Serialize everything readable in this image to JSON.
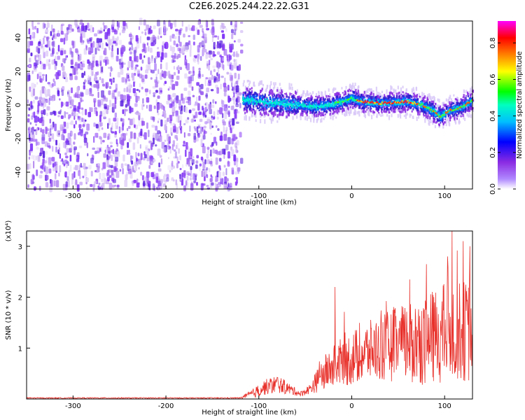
{
  "chart_data": [
    {
      "type": "heatmap",
      "title": "C2E6.2025.244.22.22.G31",
      "xlabel": "Height of straight line (km)",
      "ylabel": "Frequency (Hz)",
      "xlim": [
        -350,
        130
      ],
      "ylim": [
        -50,
        50
      ],
      "xticks": [
        -300,
        -200,
        -100,
        0,
        100
      ],
      "yticks": [
        -40,
        -20,
        0,
        20,
        40
      ],
      "noise_region_x": [
        -350,
        -120
      ],
      "ridge": [
        {
          "x": -118,
          "y": 3
        },
        {
          "x": -100,
          "y": 2
        },
        {
          "x": -80,
          "y": 1
        },
        {
          "x": -60,
          "y": 0
        },
        {
          "x": -40,
          "y": -1
        },
        {
          "x": -25,
          "y": 0
        },
        {
          "x": -10,
          "y": 2
        },
        {
          "x": 0,
          "y": 4
        },
        {
          "x": 10,
          "y": 2
        },
        {
          "x": 30,
          "y": 1
        },
        {
          "x": 60,
          "y": 2
        },
        {
          "x": 75,
          "y": 0
        },
        {
          "x": 85,
          "y": -3
        },
        {
          "x": 95,
          "y": -7
        },
        {
          "x": 105,
          "y": -3
        },
        {
          "x": 115,
          "y": -2
        },
        {
          "x": 130,
          "y": 3
        }
      ],
      "colorbar": {
        "label": "Normalized spectral amplitude",
        "ticks": [
          0.0,
          0.2,
          0.4,
          0.6,
          0.8
        ],
        "tick_labels": [
          "0.0",
          "0.2",
          "0.4",
          "0.6",
          "0.8"
        ],
        "range": [
          0,
          0.92
        ],
        "colors": [
          "#ffffff",
          "#8a2be2",
          "#0000ff",
          "#00ffff",
          "#00ff00",
          "#ffff00",
          "#ff8000",
          "#ff0000",
          "#ff00ff"
        ]
      }
    },
    {
      "type": "line",
      "title": "",
      "xlabel": "Height of straight line (km)",
      "ylabel": "SNR (10 * v/v)",
      "multiplier": "(x10⁴)",
      "xlim": [
        -350,
        130
      ],
      "ylim": [
        0,
        3.3
      ],
      "xticks": [
        -300,
        -200,
        -100,
        0,
        100
      ],
      "yticks": [
        1,
        2,
        3
      ],
      "color": "#e8302a",
      "series": [
        {
          "name": "SNR",
          "envelope": [
            {
              "x": -350,
              "mean": 0.02,
              "amp": 0.01
            },
            {
              "x": -120,
              "mean": 0.02,
              "amp": 0.01
            },
            {
              "x": -105,
              "mean": 0.12,
              "amp": 0.1
            },
            {
              "x": -95,
              "mean": 0.22,
              "amp": 0.15
            },
            {
              "x": -80,
              "mean": 0.3,
              "amp": 0.18
            },
            {
              "x": -65,
              "mean": 0.18,
              "amp": 0.1
            },
            {
              "x": -55,
              "mean": 0.1,
              "amp": 0.05
            },
            {
              "x": -45,
              "mean": 0.2,
              "amp": 0.1
            },
            {
              "x": -30,
              "mean": 0.5,
              "amp": 0.35
            },
            {
              "x": -15,
              "mean": 0.7,
              "amp": 0.45
            },
            {
              "x": 0,
              "mean": 0.8,
              "amp": 0.55
            },
            {
              "x": 20,
              "mean": 0.95,
              "amp": 0.6
            },
            {
              "x": 40,
              "mean": 1.05,
              "amp": 0.7
            },
            {
              "x": 60,
              "mean": 1.1,
              "amp": 0.8
            },
            {
              "x": 80,
              "mean": 1.15,
              "amp": 0.9
            },
            {
              "x": 100,
              "mean": 1.3,
              "amp": 1.0
            },
            {
              "x": 115,
              "mean": 1.35,
              "amp": 1.0
            },
            {
              "x": 130,
              "mean": 1.3,
              "amp": 1.0
            }
          ],
          "peaks": [
            {
              "x": -18,
              "y": 2.2
            },
            {
              "x": 103,
              "y": 2.8
            },
            {
              "x": 108,
              "y": 3.3
            },
            {
              "x": 120,
              "y": 3.1
            },
            {
              "x": 127,
              "y": 3.0
            }
          ]
        }
      ]
    }
  ]
}
